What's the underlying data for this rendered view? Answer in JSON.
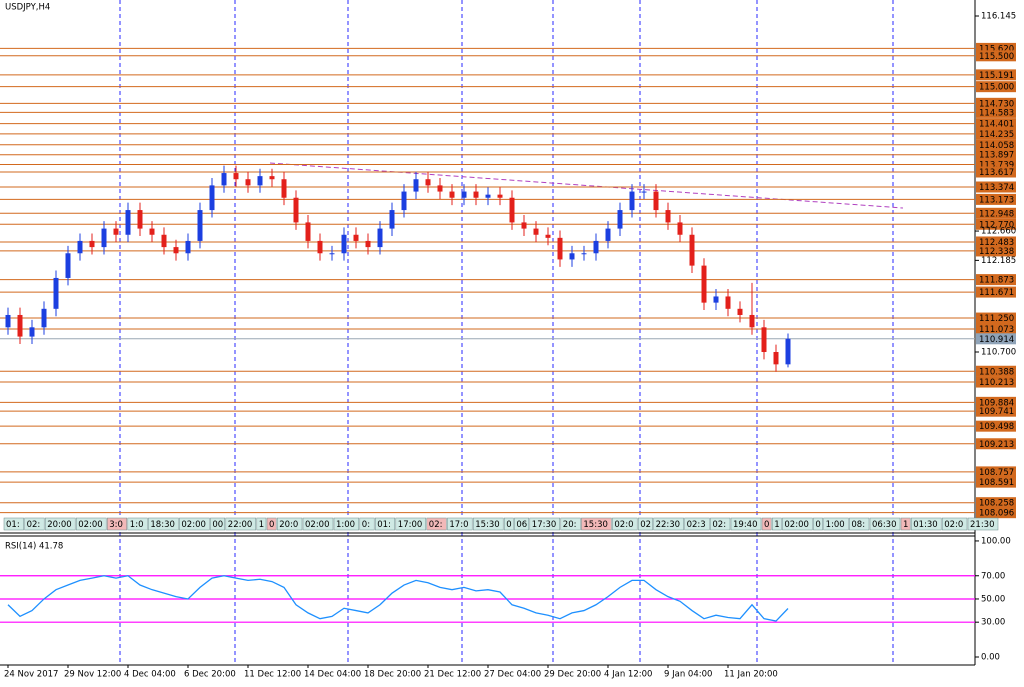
{
  "chart_data": [
    {
      "type": "candlestick",
      "title": "USDJPY,H4",
      "categories": [
        "24 Nov 2017",
        null,
        null,
        null,
        null,
        "29 Nov 12:00",
        null,
        null,
        null,
        null,
        "4 Dec 04:00",
        null,
        null,
        null,
        null,
        "6 Dec 20:00",
        null,
        null,
        null,
        null,
        "11 Dec 12:00",
        null,
        null,
        null,
        null,
        "14 Dec 04:00",
        null,
        null,
        null,
        null,
        "18 Dec 20:00",
        null,
        null,
        null,
        null,
        "21 Dec 12:00",
        null,
        null,
        null,
        null,
        "27 Dec 04:00",
        null,
        null,
        null,
        null,
        "29 Dec 20:00",
        null,
        null,
        null,
        null,
        "4 Jan 12:00",
        null,
        null,
        null,
        null,
        "9 Jan 04:00",
        null,
        null,
        null,
        null,
        "11 Jan 20:00",
        null,
        null,
        null,
        null,
        null
      ],
      "open": [
        111.1,
        111.3,
        110.95,
        111.1,
        111.4,
        111.9,
        112.3,
        112.5,
        112.4,
        112.7,
        112.6,
        113.0,
        112.7,
        112.6,
        112.4,
        112.3,
        112.5,
        113.0,
        113.4,
        113.6,
        113.5,
        113.4,
        113.55,
        113.5,
        113.2,
        112.8,
        112.5,
        112.3,
        112.3,
        112.6,
        112.5,
        112.4,
        112.7,
        113.0,
        113.3,
        113.5,
        113.4,
        113.3,
        113.2,
        113.3,
        113.2,
        113.25,
        113.2,
        112.8,
        112.7,
        112.6,
        112.55,
        112.2,
        112.3,
        112.3,
        112.5,
        112.7,
        113.0,
        113.3,
        113.3,
        113.0,
        112.8,
        112.6,
        112.1,
        111.5,
        111.6,
        111.4,
        111.3,
        111.1,
        110.7,
        110.5
      ],
      "high": [
        111.42,
        111.42,
        111.22,
        111.52,
        112.02,
        112.42,
        112.62,
        112.62,
        112.82,
        112.82,
        113.12,
        113.12,
        112.82,
        112.72,
        112.52,
        112.62,
        113.12,
        113.52,
        113.72,
        113.72,
        113.62,
        113.67,
        113.67,
        113.62,
        113.32,
        112.92,
        112.62,
        112.42,
        112.72,
        112.72,
        112.62,
        112.82,
        113.12,
        113.42,
        113.62,
        113.62,
        113.52,
        113.42,
        113.42,
        113.42,
        113.37,
        113.37,
        113.32,
        112.92,
        112.82,
        112.72,
        112.67,
        112.42,
        112.42,
        112.62,
        112.82,
        113.12,
        113.42,
        113.42,
        113.42,
        113.12,
        112.92,
        112.72,
        112.22,
        111.72,
        111.72,
        111.52,
        111.82,
        111.22,
        110.82,
        111.0
      ],
      "low": [
        110.98,
        110.83,
        110.83,
        110.98,
        111.28,
        111.78,
        112.18,
        112.28,
        112.28,
        112.48,
        112.48,
        112.58,
        112.48,
        112.28,
        112.18,
        112.18,
        112.38,
        112.88,
        113.28,
        113.38,
        113.28,
        113.28,
        113.38,
        113.08,
        112.68,
        112.38,
        112.18,
        112.18,
        112.18,
        112.38,
        112.28,
        112.28,
        112.58,
        112.88,
        113.18,
        113.28,
        113.18,
        113.08,
        113.08,
        113.08,
        113.08,
        113.08,
        112.68,
        112.58,
        112.48,
        112.43,
        112.08,
        112.08,
        112.18,
        112.18,
        112.38,
        112.58,
        112.88,
        113.18,
        112.88,
        112.68,
        112.48,
        111.98,
        111.38,
        111.38,
        111.28,
        111.18,
        110.98,
        110.58,
        110.38,
        110.45
      ],
      "close": [
        111.3,
        110.95,
        111.1,
        111.4,
        111.9,
        112.3,
        112.5,
        112.4,
        112.7,
        112.6,
        113.0,
        112.7,
        112.6,
        112.4,
        112.3,
        112.5,
        113.0,
        113.4,
        113.6,
        113.5,
        113.4,
        113.55,
        113.5,
        113.2,
        112.8,
        112.5,
        112.3,
        112.3,
        112.6,
        112.5,
        112.4,
        112.7,
        113.0,
        113.3,
        113.5,
        113.4,
        113.3,
        113.2,
        113.3,
        113.2,
        113.25,
        113.2,
        112.8,
        112.7,
        112.6,
        112.55,
        112.2,
        112.3,
        112.3,
        112.5,
        112.7,
        113.0,
        113.3,
        113.3,
        113.0,
        112.8,
        112.6,
        112.1,
        111.5,
        111.6,
        111.4,
        111.3,
        111.1,
        110.7,
        110.5,
        110.914
      ],
      "up_color": "#1c3fe0",
      "down_color": "#e3201b",
      "ylim": [
        107.783,
        116.372
      ],
      "yticks": [
        116.145,
        {
          "value": 112.66,
          "label": "112.660"
        },
        112.185,
        {
          "value": 110.7,
          "label": "110.700"
        }
      ],
      "levels": [
        {
          "value": 115.62,
          "label": "115.620"
        },
        {
          "value": 115.5,
          "label": "115.500"
        },
        115.191,
        {
          "value": 115,
          "label": "115.000"
        },
        {
          "value": 114.73,
          "label": "114.730"
        },
        114.583,
        114.401,
        114.235,
        114.058,
        113.897,
        113.739,
        113.617,
        113.374,
        113.173,
        112.948,
        {
          "value": 112.77,
          "label": "112.770"
        },
        112.483,
        112.338,
        111.873,
        111.671,
        {
          "value": 111.25,
          "label": "111.250"
        },
        111.073,
        110.388,
        110.213,
        109.884,
        109.741,
        109.498,
        109.213,
        108.757,
        108.591,
        108.258,
        108.096
      ],
      "level_color": "#d2691e",
      "current_price": 110.914,
      "time_boxes": [
        "01:",
        "02:",
        "20:00",
        "02:00",
        "3:0",
        "1:0",
        "18:30",
        "02:00",
        "00",
        "22:00",
        "1",
        "0",
        "20:0",
        "02:00",
        "1:00",
        "0:",
        "01:",
        "17:00",
        "02:",
        "17:0",
        "15:30",
        "0",
        "06",
        "17:30",
        "20:",
        "15:30",
        "02:0",
        "02",
        "22:30",
        "02:3",
        "02:",
        "19:40",
        "0",
        "1",
        "02:00",
        "0",
        "1:00",
        "08:",
        "06:30",
        "1",
        "01:30",
        "02:0",
        "21:30"
      ]
    },
    {
      "type": "line",
      "title": "RSI(14) 41.78",
      "values": [
        45,
        35,
        40,
        50,
        58,
        62,
        66,
        68,
        70,
        68,
        70,
        62,
        58,
        55,
        52,
        50,
        60,
        68,
        70,
        68,
        66,
        67,
        65,
        60,
        45,
        38,
        33,
        35,
        42,
        40,
        38,
        45,
        55,
        62,
        66,
        64,
        60,
        58,
        60,
        57,
        58,
        56,
        45,
        42,
        38,
        36,
        33,
        38,
        40,
        45,
        52,
        60,
        66,
        66,
        58,
        52,
        48,
        40,
        33,
        36,
        34,
        33,
        45,
        33,
        31,
        41.78
      ],
      "color": "#1e90ff",
      "ylim": [
        -6.9,
        103.4
      ],
      "yticks": [
        {
          "value": 100,
          "label": "100.00"
        },
        {
          "value": 70,
          "label": "70.00"
        },
        {
          "value": 50,
          "label": "50.00"
        },
        {
          "value": 30,
          "label": "30.00"
        },
        {
          "value": 0,
          "label": "0.00"
        }
      ],
      "levels": [
        30,
        50,
        70
      ],
      "level_color": "#ff00ff"
    }
  ]
}
